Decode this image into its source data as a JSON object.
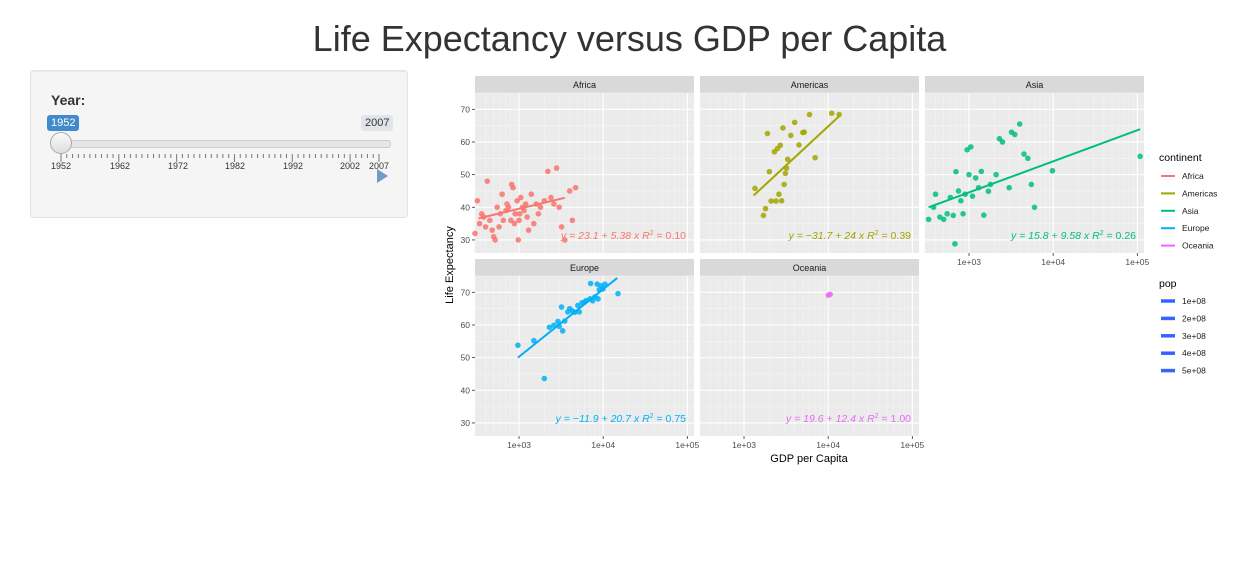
{
  "page": {
    "title": "Life Expectancy versus GDP per Capita"
  },
  "slider": {
    "label": "Year:",
    "min_value": "1952",
    "max_value": "2007",
    "current_value": "1952",
    "grid_labels": [
      "1952",
      "1962",
      "1972",
      "1982",
      "1992",
      "2002",
      "2007"
    ],
    "play_icon": "play-icon",
    "accent_color": "#428bca"
  },
  "chart_data": {
    "type": "scatter",
    "xlabel": "GDP per Capita",
    "ylabel": "Life Expectancy",
    "x_scale": "log10",
    "xlim": [
      300,
      120000
    ],
    "ylim": [
      26,
      75
    ],
    "x_ticks": [
      {
        "value": 1000,
        "label": "1e+03"
      },
      {
        "value": 10000,
        "label": "1e+04"
      },
      {
        "value": 100000,
        "label": "1e+05"
      }
    ],
    "y_ticks": [
      {
        "value": 30,
        "label": "30"
      },
      {
        "value": 40,
        "label": "40"
      },
      {
        "value": 50,
        "label": "50"
      },
      {
        "value": 60,
        "label": "60"
      },
      {
        "value": 70,
        "label": "70"
      }
    ],
    "grid": true,
    "legend_position": "right",
    "legends": {
      "continent": {
        "title": "continent",
        "entries": [
          {
            "label": "Africa",
            "color": "#F8766D"
          },
          {
            "label": "Americas",
            "color": "#A3A500"
          },
          {
            "label": "Asia",
            "color": "#00BF7D"
          },
          {
            "label": "Europe",
            "color": "#00B0F6"
          },
          {
            "label": "Oceania",
            "color": "#E76BF3"
          }
        ]
      },
      "pop": {
        "title": "pop",
        "color": "#3366FF",
        "entries": [
          "1e+08",
          "2e+08",
          "3e+08",
          "4e+08",
          "5e+08"
        ]
      }
    },
    "facets": [
      {
        "name": "Africa",
        "color": "#F8766D",
        "equation": "y = 23.1 + 5.38  x",
        "r2": "= 0.10",
        "fit": {
          "x": [
            330,
            3500
          ],
          "y": [
            36.6,
            42.9
          ]
        },
        "points": [
          [
            300,
            32
          ],
          [
            320,
            42
          ],
          [
            340,
            35
          ],
          [
            360,
            38
          ],
          [
            380,
            37
          ],
          [
            400,
            34
          ],
          [
            420,
            48
          ],
          [
            450,
            36
          ],
          [
            480,
            33
          ],
          [
            500,
            31
          ],
          [
            520,
            30
          ],
          [
            550,
            40
          ],
          [
            580,
            34
          ],
          [
            600,
            38
          ],
          [
            630,
            44
          ],
          [
            650,
            36
          ],
          [
            700,
            39
          ],
          [
            720,
            41
          ],
          [
            750,
            40
          ],
          [
            800,
            36
          ],
          [
            820,
            47
          ],
          [
            850,
            46
          ],
          [
            880,
            35
          ],
          [
            900,
            38
          ],
          [
            950,
            42
          ],
          [
            980,
            30
          ],
          [
            1000,
            36
          ],
          [
            1020,
            38
          ],
          [
            1050,
            43
          ],
          [
            1100,
            40
          ],
          [
            1150,
            39
          ],
          [
            1200,
            41
          ],
          [
            1250,
            37
          ],
          [
            1300,
            33
          ],
          [
            1400,
            44
          ],
          [
            1500,
            35
          ],
          [
            1600,
            41
          ],
          [
            1700,
            38
          ],
          [
            1800,
            40
          ],
          [
            2000,
            42
          ],
          [
            2200,
            51
          ],
          [
            2400,
            43
          ],
          [
            2600,
            41
          ],
          [
            2800,
            52
          ],
          [
            3000,
            40
          ],
          [
            3200,
            34
          ],
          [
            3500,
            30
          ],
          [
            4000,
            45
          ],
          [
            4300,
            36
          ],
          [
            4700,
            46
          ]
        ]
      },
      {
        "name": "Americas",
        "color": "#A3A500",
        "equation": "y = −31.7 + 24  x",
        "r2": "= 0.39",
        "fit": {
          "x": [
            1300,
            13500
          ],
          "y": [
            43.6,
            67.9
          ]
        },
        "points": [
          [
            1350,
            45.8
          ],
          [
            1700,
            37.5
          ],
          [
            1800,
            39.6
          ],
          [
            1900,
            62.6
          ],
          [
            2000,
            50.9
          ],
          [
            2100,
            41.9
          ],
          [
            2300,
            57.0
          ],
          [
            2400,
            41.9
          ],
          [
            2500,
            58.0
          ],
          [
            2600,
            44.0
          ],
          [
            2700,
            59.0
          ],
          [
            2800,
            42.0
          ],
          [
            2900,
            64.3
          ],
          [
            3000,
            47.0
          ],
          [
            3100,
            50.4
          ],
          [
            3200,
            52.0
          ],
          [
            3300,
            54.7
          ],
          [
            3600,
            62.0
          ],
          [
            4000,
            66.0
          ],
          [
            4500,
            59.1
          ],
          [
            5000,
            62.9
          ],
          [
            5200,
            63.0
          ],
          [
            6000,
            68.4
          ],
          [
            7000,
            55.2
          ],
          [
            11000,
            68.8
          ],
          [
            13500,
            68.4
          ]
        ]
      },
      {
        "name": "Asia",
        "color": "#00BF7D",
        "equation": "y = 15.8 + 9.58  x",
        "r2": "= 0.26",
        "fit": {
          "x": [
            331,
            108000
          ],
          "y": [
            40,
            63.9
          ]
        },
        "points": [
          [
            331,
            36.3
          ],
          [
            380,
            40.0
          ],
          [
            400,
            44.0
          ],
          [
            450,
            37.0
          ],
          [
            500,
            36.3
          ],
          [
            550,
            38.0
          ],
          [
            600,
            43.0
          ],
          [
            650,
            37.5
          ],
          [
            680,
            28.8
          ],
          [
            700,
            50.9
          ],
          [
            750,
            45.0
          ],
          [
            800,
            42.0
          ],
          [
            850,
            38.0
          ],
          [
            900,
            44.0
          ],
          [
            950,
            57.6
          ],
          [
            1000,
            50.0
          ],
          [
            1050,
            58.5
          ],
          [
            1100,
            43.4
          ],
          [
            1200,
            49.0
          ],
          [
            1300,
            46.0
          ],
          [
            1400,
            51.0
          ],
          [
            1500,
            37.6
          ],
          [
            1700,
            44.9
          ],
          [
            1800,
            47.0
          ],
          [
            2100,
            50.0
          ],
          [
            2300,
            61.0
          ],
          [
            2500,
            60.0
          ],
          [
            3000,
            46.0
          ],
          [
            3200,
            63.0
          ],
          [
            3500,
            62.3
          ],
          [
            4000,
            65.5
          ],
          [
            4500,
            56.3
          ],
          [
            5000,
            55.0
          ],
          [
            5500,
            47.0
          ],
          [
            6000,
            40.0
          ],
          [
            9800,
            51.2
          ],
          [
            108000,
            55.6
          ]
        ]
      },
      {
        "name": "Europe",
        "color": "#00B0F6",
        "equation": "y = −11.9 + 20.7  x",
        "r2": "= 0.75",
        "fit": {
          "x": [
            970,
            14700
          ],
          "y": [
            50,
            74.4
          ]
        },
        "points": [
          [
            970,
            53.8
          ],
          [
            1500,
            55.2
          ],
          [
            2000,
            43.6
          ],
          [
            2300,
            59.3
          ],
          [
            2600,
            59.9
          ],
          [
            2900,
            61.1
          ],
          [
            3000,
            59.6
          ],
          [
            3200,
            65.5
          ],
          [
            3300,
            58.2
          ],
          [
            3500,
            61.2
          ],
          [
            3800,
            64.0
          ],
          [
            4000,
            65.0
          ],
          [
            4300,
            64.3
          ],
          [
            4600,
            63.9
          ],
          [
            5000,
            66.0
          ],
          [
            5200,
            64.0
          ],
          [
            5600,
            66.8
          ],
          [
            6000,
            67.0
          ],
          [
            6300,
            67.5
          ],
          [
            7000,
            68.0
          ],
          [
            7100,
            72.7
          ],
          [
            7500,
            67.4
          ],
          [
            8000,
            68.6
          ],
          [
            8500,
            72.5
          ],
          [
            8700,
            68.0
          ],
          [
            9000,
            70.8
          ],
          [
            9500,
            72.0
          ],
          [
            9900,
            71.0
          ],
          [
            10500,
            72.5
          ],
          [
            15000,
            69.6
          ]
        ]
      },
      {
        "name": "Oceania",
        "color": "#E76BF3",
        "equation": "y = 19.6 + 12.4  x",
        "r2": "= 1.00",
        "fit": {
          "x": [
            10040,
            10560
          ],
          "y": [
            69.12,
            69.39
          ]
        },
        "points": [
          [
            10040,
            69.12
          ],
          [
            10560,
            69.39
          ]
        ]
      }
    ]
  }
}
